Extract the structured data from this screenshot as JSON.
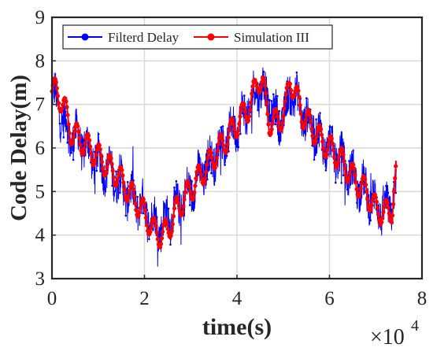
{
  "chart_data": {
    "type": "line",
    "xlabel": "time(s)",
    "ylabel": "Code Delay(m)",
    "x_exponent_label": "×10",
    "x_exponent_power": "4",
    "xlim": [
      0,
      80000
    ],
    "ylim": [
      3,
      9
    ],
    "xticks": [
      0,
      20000,
      40000,
      60000,
      80000
    ],
    "xtick_labels": [
      "0",
      "2",
      "4",
      "6",
      "8"
    ],
    "yticks": [
      3,
      4,
      5,
      6,
      7,
      8,
      9
    ],
    "ytick_labels": [
      "3",
      "4",
      "5",
      "6",
      "7",
      "8",
      "9"
    ],
    "grid": true,
    "legend_position": "top",
    "series": [
      {
        "name": "Filterd Delay",
        "color": "#0000ff",
        "marker": "circle",
        "noise_amplitude": 0.45,
        "x": [
          0,
          1000,
          2500,
          4000,
          6000,
          8000,
          10000,
          12000,
          14000,
          16000,
          18000,
          20000,
          22000,
          23500,
          25000,
          27000,
          29000,
          31000,
          33000,
          35000,
          37000,
          39000,
          41000,
          43000,
          44500,
          45500,
          47000,
          49000,
          50500,
          51500,
          52500,
          54000,
          56000,
          58000,
          60000,
          62000,
          64000,
          66000,
          68000,
          70000,
          72000,
          73500,
          74500
        ],
        "y": [
          7.2,
          7.1,
          6.6,
          6.3,
          6.2,
          5.9,
          5.7,
          5.5,
          5.3,
          5.0,
          4.8,
          4.6,
          4.3,
          4.2,
          4.4,
          4.6,
          4.9,
          5.2,
          5.5,
          5.8,
          6.1,
          6.4,
          6.7,
          7.0,
          7.4,
          7.4,
          6.9,
          6.6,
          6.8,
          7.3,
          7.2,
          6.8,
          6.5,
          6.2,
          6.0,
          5.8,
          5.5,
          5.2,
          5.0,
          4.7,
          4.5,
          4.7,
          5.3
        ]
      },
      {
        "name": "Simulation III",
        "color": "#ff0000",
        "marker": "circle",
        "ripple_amplitude": 0.3,
        "x": [
          0,
          1000,
          2500,
          4000,
          6000,
          8000,
          10000,
          12000,
          14000,
          16000,
          18000,
          20000,
          22000,
          23500,
          25000,
          27000,
          29000,
          31000,
          33000,
          35000,
          37000,
          39000,
          41000,
          43000,
          44500,
          45500,
          47000,
          49000,
          50500,
          51500,
          52500,
          54000,
          56000,
          58000,
          60000,
          62000,
          64000,
          66000,
          68000,
          70000,
          72000,
          73500,
          74500
        ],
        "y": [
          7.3,
          7.3,
          7.0,
          6.4,
          6.2,
          6.0,
          5.8,
          5.6,
          5.4,
          5.1,
          4.8,
          4.5,
          4.1,
          4.0,
          4.1,
          4.6,
          4.9,
          5.2,
          5.5,
          5.8,
          6.1,
          6.4,
          6.7,
          7.0,
          7.6,
          7.5,
          6.6,
          6.6,
          6.9,
          7.6,
          7.3,
          6.8,
          6.5,
          6.2,
          6.0,
          5.8,
          5.5,
          5.2,
          5.0,
          4.6,
          4.5,
          4.6,
          5.5
        ]
      }
    ]
  }
}
